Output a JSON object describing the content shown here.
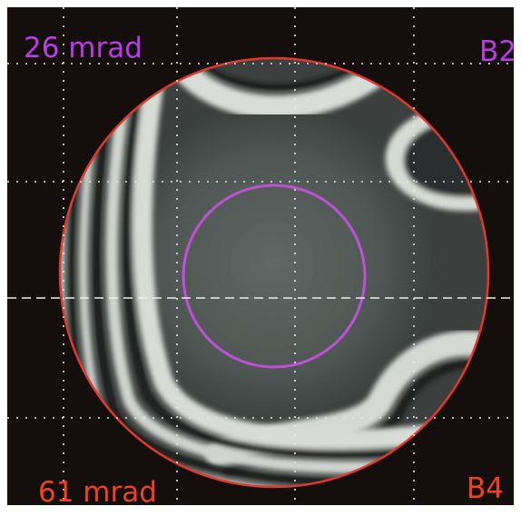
{
  "readouts": {
    "top_left": "26 mrad",
    "top_right": "B2",
    "bottom_left": "61 mrad",
    "bottom_right": "B4"
  },
  "colors": {
    "background": "#140f0c",
    "grid": "#e9e9e9",
    "aperture_outline": "#e03a2e",
    "inner_circle": "#c050d8",
    "top_label": "#b83de8",
    "bottom_label": "#f0421e"
  },
  "description_free": true
}
